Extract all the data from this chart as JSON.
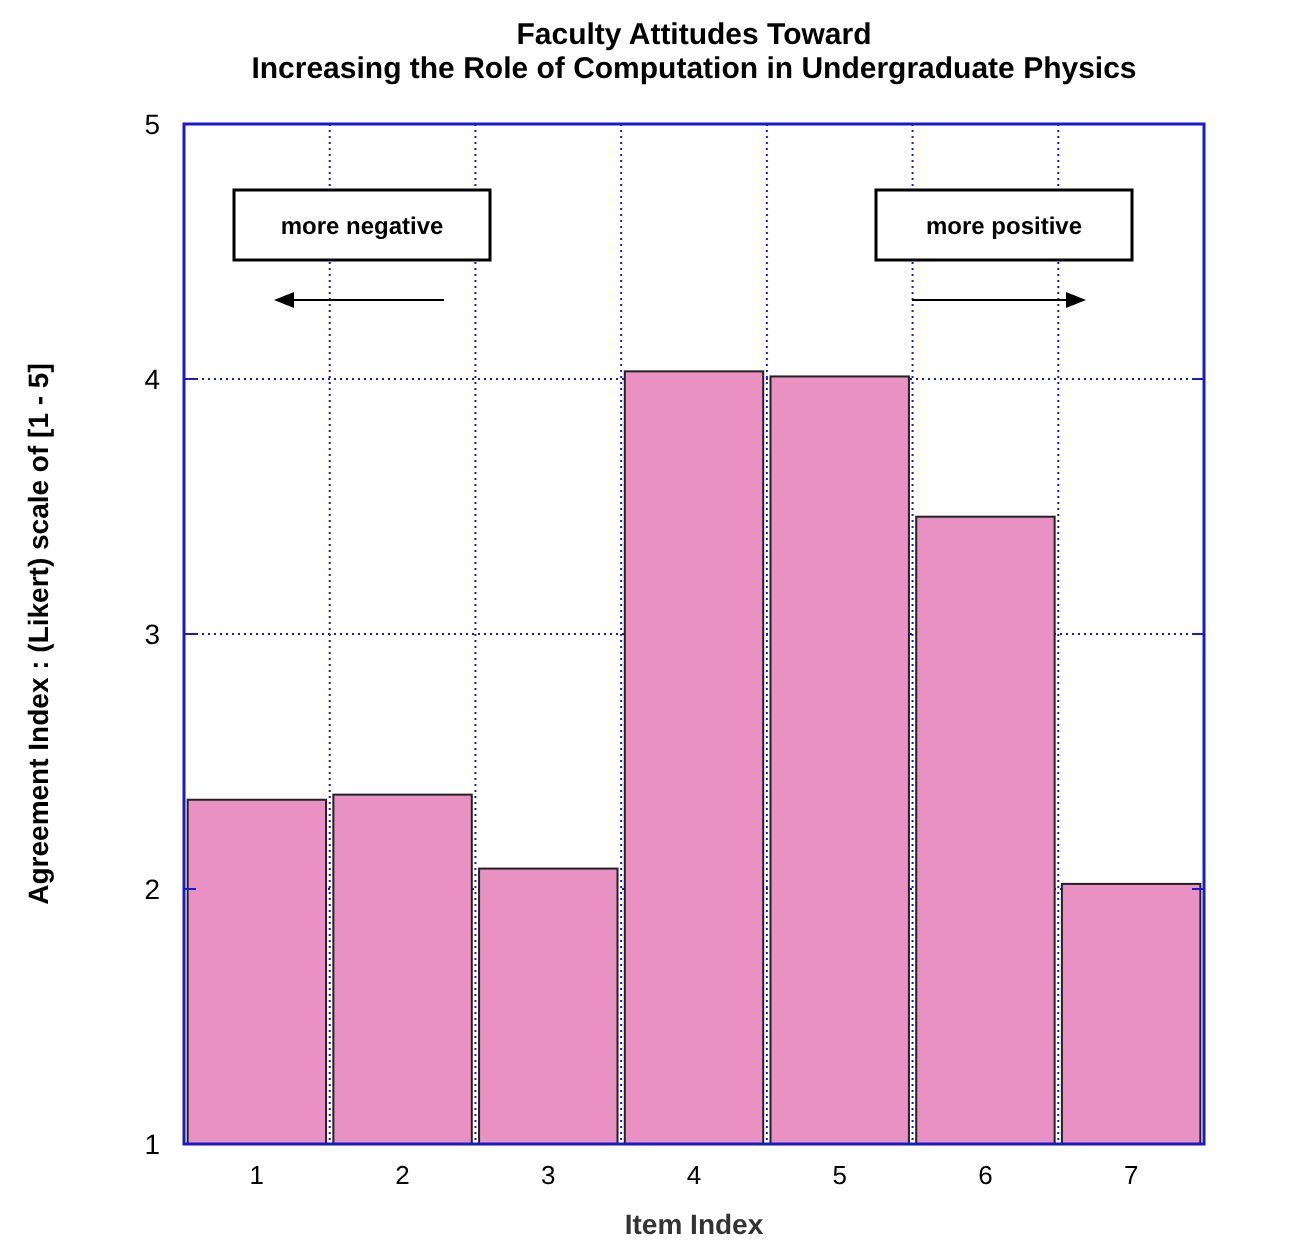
{
  "chart_data": {
    "type": "bar",
    "title": "Faculty Attitudes Toward\nIncreasing the Role of Computation in Undergraduate Physics",
    "xlabel": "Item Index",
    "ylabel": "Agreement Index : (Likert) scale of [1 - 5]",
    "categories": [
      "1",
      "2",
      "3",
      "4",
      "5",
      "6",
      "7"
    ],
    "values": [
      2.35,
      2.37,
      2.08,
      4.03,
      4.01,
      3.46,
      2.02
    ],
    "color": "#e891c2",
    "ylim": [
      1,
      5
    ],
    "yticks": [
      1,
      2,
      3,
      4,
      5
    ],
    "grid": true,
    "annotations": [
      "more negative",
      "more positive"
    ]
  }
}
